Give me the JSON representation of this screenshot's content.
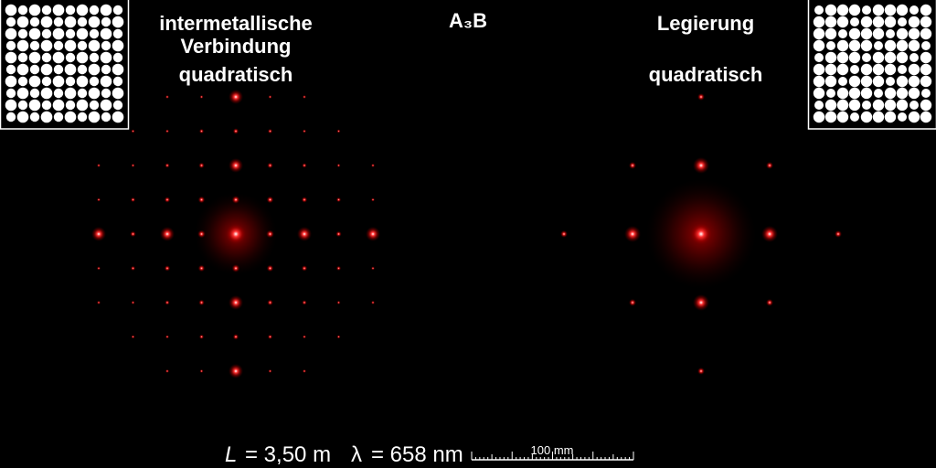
{
  "left_label": {
    "lines": [
      "intermetallische",
      "Verbindung",
      "quadratisch"
    ]
  },
  "title": "A₃B",
  "right_label": {
    "lines": [
      "Legierung",
      "quadratisch"
    ]
  },
  "footer": {
    "distance": {
      "symbol": "L",
      "text": "= 3,50 m"
    },
    "wavelength": {
      "symbol": "λ",
      "text": "= 658 nm"
    },
    "scale_bar": "100 mm"
  }
}
